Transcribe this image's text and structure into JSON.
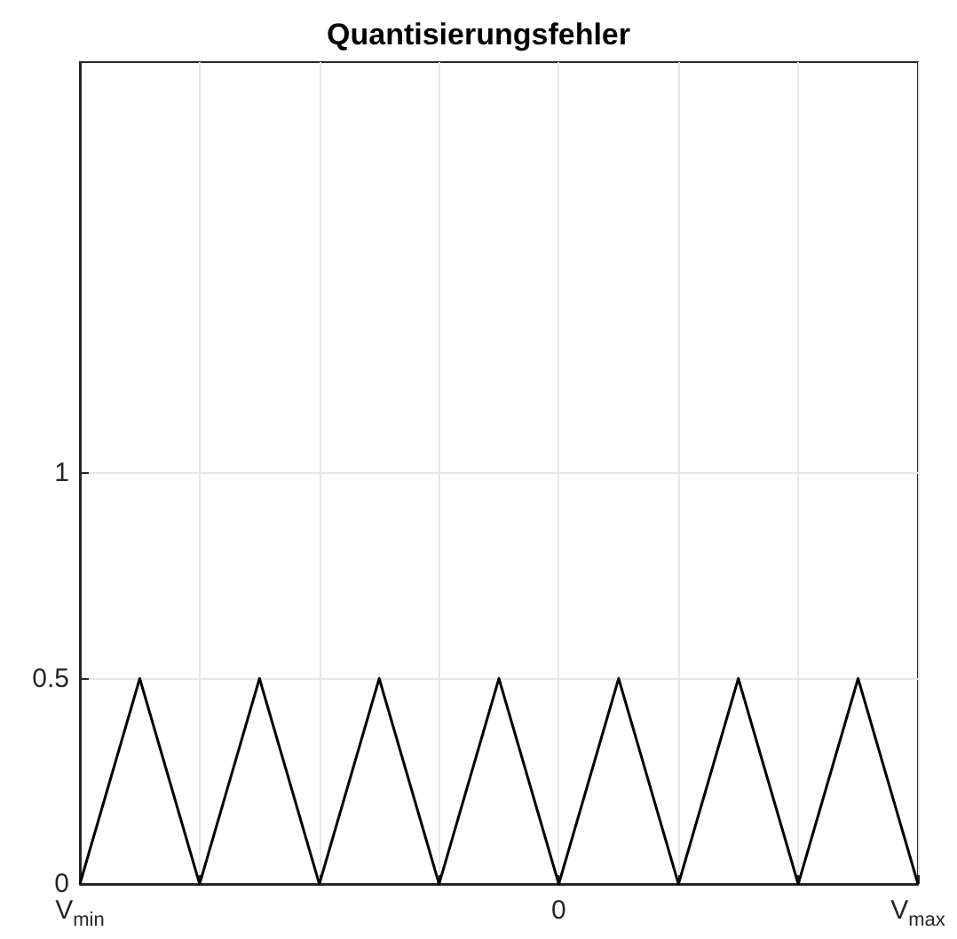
{
  "chart_data": {
    "type": "line",
    "title": "Quantisierungsfehler",
    "categories": [
      "V$_{min}$",
      null,
      null,
      null,
      null,
      null,
      null,
      null,
      "0",
      null,
      null,
      null,
      null,
      null,
      "V$_{max}$"
    ],
    "series": [
      {
        "color": "#000000",
        "values": [
          0,
          0.5,
          0,
          0.5,
          0,
          0.5,
          0,
          0.5,
          0,
          0.5,
          0,
          0.5,
          0,
          0.5,
          0
        ]
      }
    ],
    "ylim": [
      0,
      2
    ],
    "yticks": [
      0,
      0.5,
      1
    ],
    "grid": true,
    "marker": "none",
    "line_style": "solid"
  }
}
